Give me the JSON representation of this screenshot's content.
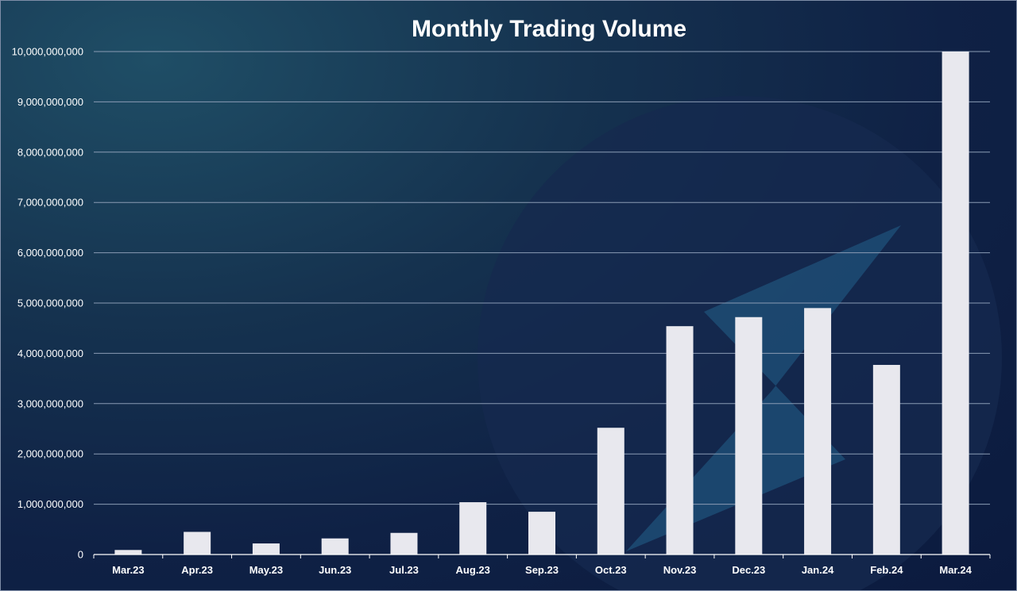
{
  "chart_data": {
    "type": "bar",
    "title": "Monthly Trading Volume",
    "xlabel": "",
    "ylabel": "",
    "categories": [
      "Mar.23",
      "Apr.23",
      "May.23",
      "Jun.23",
      "Jul.23",
      "Aug.23",
      "Sep.23",
      "Oct.23",
      "Nov.23",
      "Dec.23",
      "Jan.24",
      "Feb.24",
      "Mar.24"
    ],
    "values": [
      90000000,
      450000000,
      220000000,
      320000000,
      430000000,
      1040000000,
      850000000,
      2520000000,
      4540000000,
      4720000000,
      4900000000,
      3770000000,
      10000000000
    ],
    "ylim": [
      0,
      10000000000
    ],
    "yticks": [
      "0",
      "1,000,000,000",
      "2,000,000,000",
      "3,000,000,000",
      "4,000,000,000",
      "5,000,000,000",
      "6,000,000,000",
      "7,000,000,000",
      "8,000,000,000",
      "9,000,000,000",
      "10,000,000,000"
    ],
    "grid": true,
    "legend": "none",
    "colors": {
      "bar": "#e8e8ee",
      "grid": "#8a9bb4",
      "text": "#ffffff",
      "background": "#0f2145",
      "watermark_circle": "#15294f",
      "watermark_bolt": "#1d4a72"
    }
  }
}
